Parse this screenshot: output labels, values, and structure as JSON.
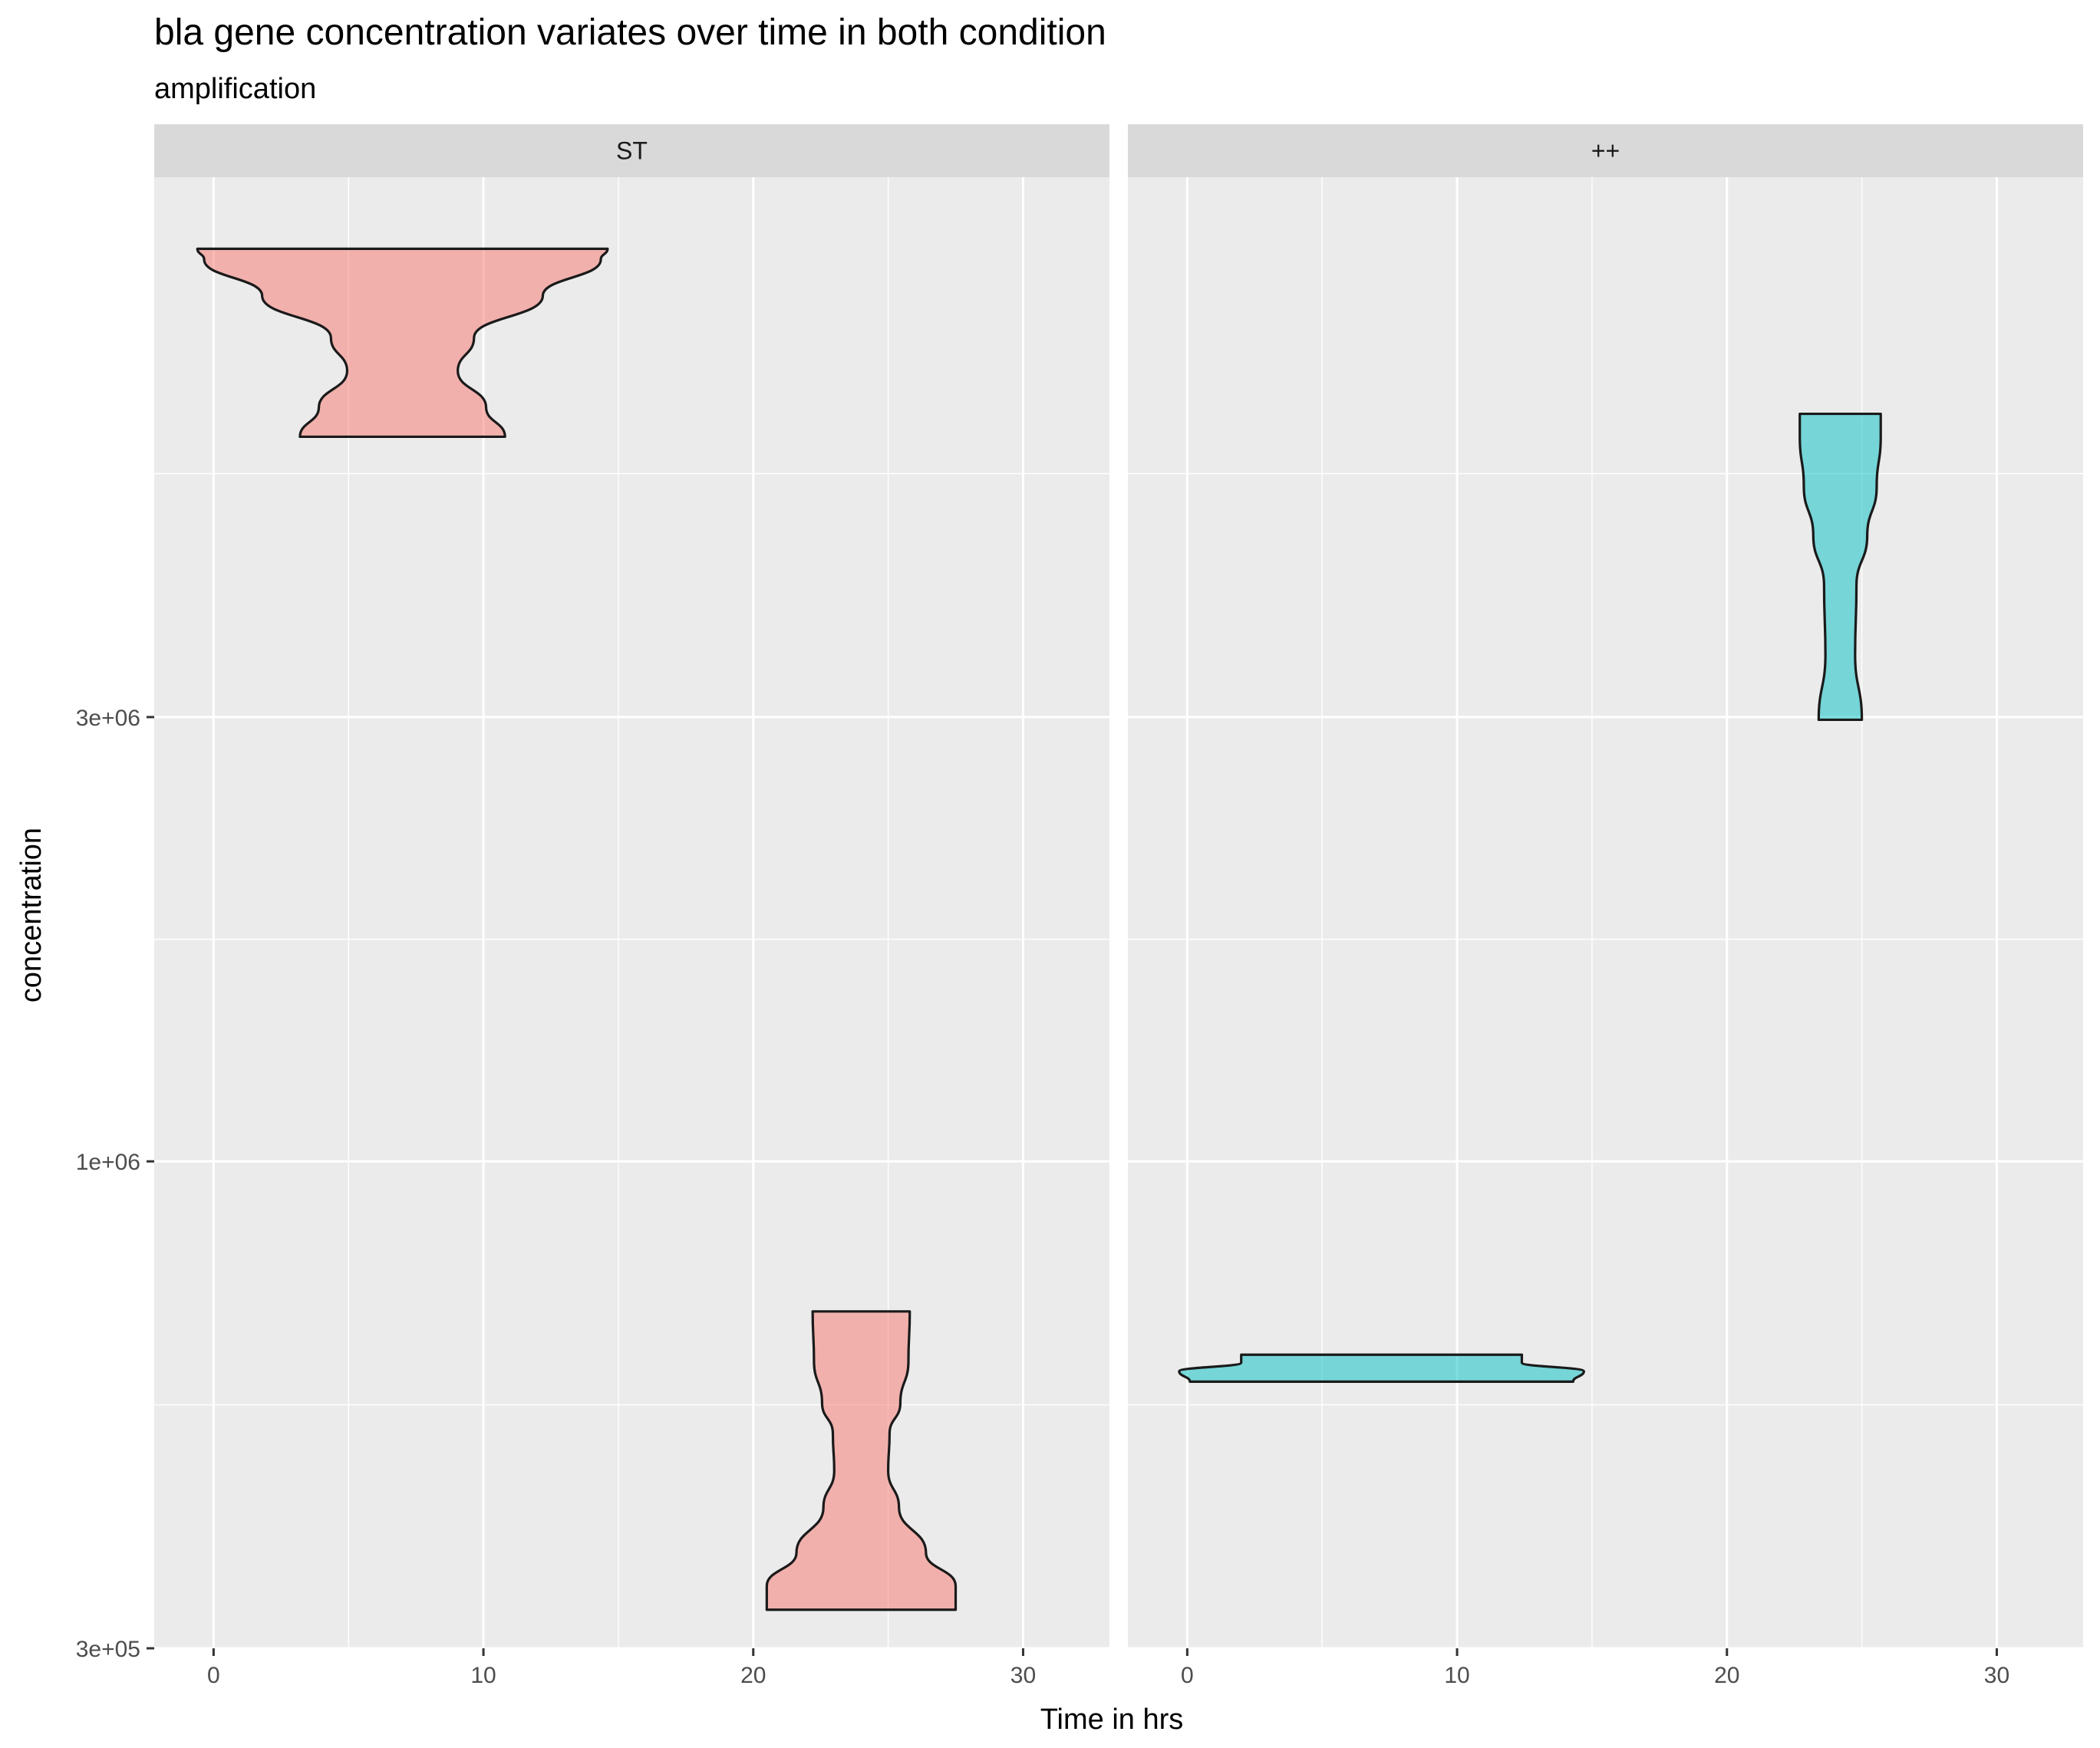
{
  "chart_data": {
    "type": "violin",
    "title": "bla gene concentration variates over time in both condition",
    "subtitle": "amplification",
    "xlabel": "Time in hrs",
    "ylabel": "concentration",
    "y_scale": "log10",
    "xlim": [
      -2.2,
      33.2
    ],
    "ylim": [
      300000,
      11400000
    ],
    "x_ticks": [
      0,
      10,
      20,
      30
    ],
    "x_tick_labels": [
      "0",
      "10",
      "20",
      "30"
    ],
    "y_ticks": [
      300000,
      1000000,
      3000000
    ],
    "y_tick_labels": [
      "3e+05",
      "1e+06",
      "3e+06"
    ],
    "y_minor_gridlines": [
      547723,
      1732051,
      5477226
    ],
    "grid": true,
    "legend": "none",
    "panels": [
      {
        "label": "ST",
        "fill": "#F8766D",
        "violins": [
          {
            "x": 7,
            "y_min": 6000000,
            "y_max": 9550000,
            "profile": [
              {
                "y": 6000000,
                "halfwidth": 3.8
              },
              {
                "y": 6450000,
                "halfwidth": 3.1
              },
              {
                "y": 7060000,
                "halfwidth": 2.05
              },
              {
                "y": 7660000,
                "halfwidth": 2.65
              },
              {
                "y": 8500000,
                "halfwidth": 5.2
              },
              {
                "y": 9300000,
                "halfwidth": 7.35
              },
              {
                "y": 9550000,
                "halfwidth": 7.6
              }
            ]
          },
          {
            "x": 24,
            "y_min": 330000,
            "y_max": 690000,
            "profile": [
              {
                "y": 330000,
                "halfwidth": 3.5
              },
              {
                "y": 350000,
                "halfwidth": 3.5
              },
              {
                "y": 380000,
                "halfwidth": 2.4
              },
              {
                "y": 425000,
                "halfwidth": 1.4
              },
              {
                "y": 465000,
                "halfwidth": 1.0
              },
              {
                "y": 510000,
                "halfwidth": 1.05
              },
              {
                "y": 550000,
                "halfwidth": 1.45
              },
              {
                "y": 610000,
                "halfwidth": 1.75
              },
              {
                "y": 690000,
                "halfwidth": 1.8
              }
            ]
          }
        ]
      },
      {
        "label": "++",
        "fill": "#00BFC4",
        "violins": [
          {
            "x": 7.2,
            "y_min": 580000,
            "y_max": 620000,
            "profile": [
              {
                "y": 580000,
                "halfwidth": 7.1
              },
              {
                "y": 595000,
                "halfwidth": 7.5
              },
              {
                "y": 608000,
                "halfwidth": 5.2
              },
              {
                "y": 620000,
                "halfwidth": 5.2
              }
            ]
          },
          {
            "x": 24.2,
            "y_min": 2980000,
            "y_max": 6350000,
            "profile": [
              {
                "y": 2980000,
                "halfwidth": 0.8
              },
              {
                "y": 3500000,
                "halfwidth": 0.55
              },
              {
                "y": 4150000,
                "halfwidth": 0.6
              },
              {
                "y": 4700000,
                "halfwidth": 1.0
              },
              {
                "y": 5300000,
                "halfwidth": 1.35
              },
              {
                "y": 6000000,
                "halfwidth": 1.5
              },
              {
                "y": 6350000,
                "halfwidth": 1.5
              }
            ]
          }
        ]
      }
    ]
  }
}
